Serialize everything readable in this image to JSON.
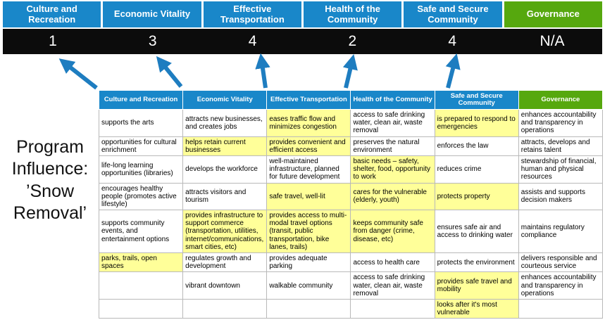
{
  "colors": {
    "blue": "#1987c9",
    "green": "#56a80e",
    "band": "#0c0c0c",
    "yellow": "#ffff99",
    "arrow": "#1e7dc0"
  },
  "title": {
    "text": "Program Influence: ’Snow Removal’"
  },
  "scoreboard": {
    "columns": [
      {
        "label": "Culture and Recreation",
        "score": "1",
        "theme": "blue"
      },
      {
        "label": "Economic Vitality",
        "score": "3",
        "theme": "blue"
      },
      {
        "label": "Effective Transportation",
        "score": "4",
        "theme": "blue"
      },
      {
        "label": "Health of the Community",
        "score": "2",
        "theme": "blue"
      },
      {
        "label": "Safe and Secure Community",
        "score": "4",
        "theme": "blue"
      },
      {
        "label": "Governance",
        "score": "N/A",
        "theme": "green"
      }
    ]
  },
  "matrix": {
    "headers": [
      {
        "label": "Culture and Recreation",
        "theme": "blue"
      },
      {
        "label": "Economic Vitality",
        "theme": "blue"
      },
      {
        "label": "Effective Transportation",
        "theme": "blue"
      },
      {
        "label": "Health of the Community",
        "theme": "blue"
      },
      {
        "label": "Safe and Secure Community",
        "theme": "blue"
      },
      {
        "label": "Governance",
        "theme": "green"
      }
    ],
    "rows": [
      [
        {
          "text": "supports the arts",
          "highlight": false
        },
        {
          "text": "attracts new businesses, and creates jobs",
          "highlight": false
        },
        {
          "text": "eases traffic flow and minimizes congestion",
          "highlight": true
        },
        {
          "text": "access to safe drinking water, clean air, waste removal",
          "highlight": false
        },
        {
          "text": "is prepared to respond to emergencies",
          "highlight": true
        },
        {
          "text": "enhances accountability and transparency in operations",
          "highlight": false
        }
      ],
      [
        {
          "text": "opportunities for cultural enrichment",
          "highlight": false
        },
        {
          "text": "helps retain current businesses",
          "highlight": true
        },
        {
          "text": "provides convenient and efficient access",
          "highlight": true
        },
        {
          "text": "preserves the natural environment",
          "highlight": false
        },
        {
          "text": "enforces the law",
          "highlight": false
        },
        {
          "text": "attracts, develops and retains talent",
          "highlight": false
        }
      ],
      [
        {
          "text": "life-long learning opportunities (libraries)",
          "highlight": false
        },
        {
          "text": "develops the workforce",
          "highlight": false
        },
        {
          "text": "well-maintained infrastructure, planned for future development",
          "highlight": false
        },
        {
          "text": "basic needs – safety, shelter, food, opportunity to work",
          "highlight": true
        },
        {
          "text": "reduces crime",
          "highlight": false
        },
        {
          "text": "stewardship of financial, human and physical resources",
          "highlight": false
        }
      ],
      [
        {
          "text": "encourages healthy people (promotes active lifestyle)",
          "highlight": false
        },
        {
          "text": "attracts visitors and tourism",
          "highlight": false
        },
        {
          "text": "safe travel, well-lit",
          "highlight": true
        },
        {
          "text": "cares for the vulnerable (elderly, youth)",
          "highlight": true
        },
        {
          "text": "protects property",
          "highlight": true
        },
        {
          "text": "assists and supports decision makers",
          "highlight": false
        }
      ],
      [
        {
          "text": "supports community events, and entertainment options",
          "highlight": false
        },
        {
          "text": "provides infrastructure to support commerce (transportation, utilities, internet/communications, smart cities, etc)",
          "highlight": true
        },
        {
          "text": "provides access to multi-modal travel options (transit, public transportation, bike lanes, trails)",
          "highlight": true
        },
        {
          "text": "keeps community safe from danger (crime, disease, etc)",
          "highlight": true
        },
        {
          "text": "ensures safe air and access to drinking water",
          "highlight": false
        },
        {
          "text": "maintains regulatory compliance",
          "highlight": false
        }
      ],
      [
        {
          "text": "parks, trails, open spaces",
          "highlight": true
        },
        {
          "text": "regulates growth and development",
          "highlight": false
        },
        {
          "text": "provides adequate parking",
          "highlight": false
        },
        {
          "text": "access to health care",
          "highlight": false
        },
        {
          "text": "protects the environment",
          "highlight": false
        },
        {
          "text": "delivers responsible and courteous service",
          "highlight": false
        }
      ],
      [
        {
          "text": "",
          "highlight": false
        },
        {
          "text": "vibrant downtown",
          "highlight": false
        },
        {
          "text": "walkable community",
          "highlight": false
        },
        {
          "text": "access to safe drinking water, clean air, waste removal",
          "highlight": false
        },
        {
          "text": "provides safe travel and mobility",
          "highlight": true
        },
        {
          "text": "enhances accountability and transparency in operations",
          "highlight": false
        }
      ],
      [
        {
          "text": "",
          "highlight": false
        },
        {
          "text": "",
          "highlight": false
        },
        {
          "text": "",
          "highlight": false
        },
        {
          "text": "",
          "highlight": false
        },
        {
          "text": "looks after it's most vulnerable",
          "highlight": true
        },
        {
          "text": "",
          "highlight": false
        }
      ]
    ]
  }
}
